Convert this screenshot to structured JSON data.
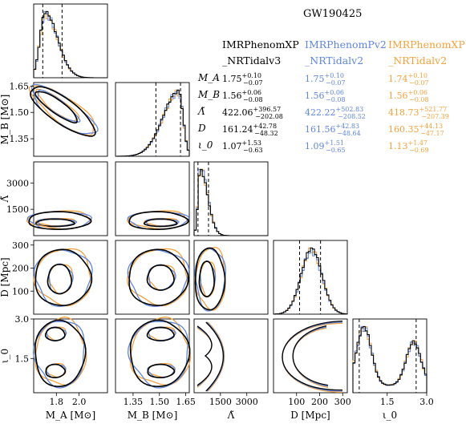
{
  "colors": {
    "xp": "#000000",
    "pv2": "#5f86e0",
    "phenom": "#f5a23a"
  },
  "title": "GW190425",
  "legend": {
    "columns": [
      {
        "name": "IMRPhenomXP",
        "suffix": "_NRTidalv3",
        "color": "#000000"
      },
      {
        "name": "IMRPhenomPv2",
        "suffix": "_NRTidalv2",
        "color": "#5f86e0"
      },
      {
        "name": "IMRPhenomXP",
        "suffix": "_NRTidalv2",
        "color": "#f5a23a"
      }
    ],
    "rows": [
      {
        "param": "M_A",
        "cells": [
          {
            "val": "1.75",
            "up": "+0.10",
            "lo": "−0.07"
          },
          {
            "val": "1.75",
            "up": "+0.10",
            "lo": "−0.07"
          },
          {
            "val": "1.74",
            "up": "+0.10",
            "lo": "−0.07"
          }
        ]
      },
      {
        "param": "M_B",
        "cells": [
          {
            "val": "1.56",
            "up": "+0.06",
            "lo": "−0.08"
          },
          {
            "val": "1.56",
            "up": "+0.06",
            "lo": "−0.08"
          },
          {
            "val": "1.56",
            "up": "+0.06",
            "lo": "−0.08"
          }
        ]
      },
      {
        "param": "Λ̃",
        "cells": [
          {
            "val": "422.06",
            "up": "+396.57",
            "lo": "−202.08"
          },
          {
            "val": "422.22",
            "up": "+502.83",
            "lo": "−208.52"
          },
          {
            "val": "418.73",
            "up": "+521.77",
            "lo": "−207.39"
          }
        ]
      },
      {
        "param": "D",
        "cells": [
          {
            "val": "161.24",
            "up": "+42.78",
            "lo": "−48.32"
          },
          {
            "val": "161.56",
            "up": "+42.83",
            "lo": "−48.64"
          },
          {
            "val": "160.35",
            "up": "+44.13",
            "lo": "−47.17"
          }
        ]
      },
      {
        "param": "ι_0",
        "cells": [
          {
            "val": "1.07",
            "up": "+1.53",
            "lo": "−0.63"
          },
          {
            "val": "1.09",
            "up": "+1.51",
            "lo": "−0.65"
          },
          {
            "val": "1.13",
            "up": "+1.47",
            "lo": "−0.69"
          }
        ]
      }
    ]
  },
  "chart_data": {
    "type": "corner",
    "parameters": [
      {
        "label": "M_A [M⊙]",
        "range": [
          1.6,
          2.25
        ],
        "ticks": [
          1.8,
          2.0
        ],
        "tick_labels": [
          "1.8",
          "2.0"
        ],
        "quantiles": [
          1.68,
          1.85
        ]
      },
      {
        "label": "M_B [M⊙]",
        "range": [
          1.25,
          1.67
        ],
        "ticks": [
          1.35,
          1.5,
          1.65
        ],
        "tick_labels": [
          "1.35",
          "1.50",
          "1.65"
        ],
        "quantiles": [
          1.48,
          1.62
        ]
      },
      {
        "label": "Λ̃",
        "range": [
          0,
          4200
        ],
        "ticks": [
          1500,
          3000
        ],
        "tick_labels": [
          "1500",
          "3000"
        ],
        "quantiles": [
          220,
          820
        ]
      },
      {
        "label": "D [Mpc]",
        "range": [
          0,
          320
        ],
        "ticks": [
          100,
          200,
          300
        ],
        "tick_labels": [
          "100",
          "200",
          "300"
        ],
        "quantiles": [
          113,
          204
        ]
      },
      {
        "label": "ι_0",
        "range": [
          0.2,
          3.0
        ],
        "ticks": [
          1.5,
          3.0
        ],
        "tick_labels": [
          "1.5",
          "3.0"
        ],
        "quantiles": [
          0.44,
          2.6
        ]
      }
    ],
    "y_ticks": {
      "M_B [M⊙]": {
        "ticks": [
          1.35,
          1.5,
          1.65
        ],
        "labels": [
          "1.35",
          "1.50",
          "1.65"
        ]
      },
      "Λ̃": {
        "ticks": [
          1500,
          3000
        ],
        "labels": [
          "1500",
          "3000"
        ]
      },
      "D [Mpc]": {
        "ticks": [
          100,
          200,
          300
        ],
        "labels": [
          "100",
          "200",
          "300"
        ]
      },
      "ι_0": {
        "ticks": [
          1.5,
          3.0
        ],
        "labels": [
          "1.5",
          "3.0"
        ]
      }
    },
    "series": [
      {
        "name": "IMRPhenomXP_NRTidalv3",
        "color": "#000000"
      },
      {
        "name": "IMRPhenomPv2_NRTidalv2",
        "color": "#5f86e0"
      },
      {
        "name": "IMRPhenomXP_NRTidalv2",
        "color": "#f5a23a"
      }
    ]
  }
}
